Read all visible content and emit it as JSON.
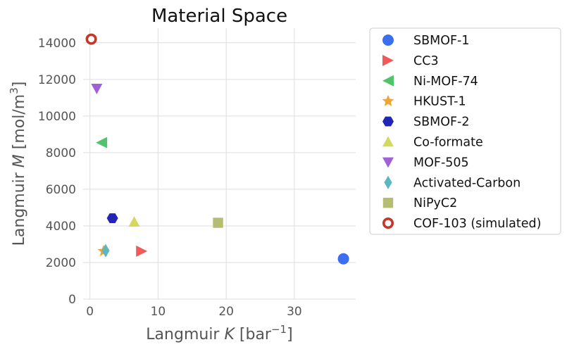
{
  "chart_data": {
    "type": "scatter",
    "title": "Material Space",
    "xlabel": {
      "prefix": "Langmuir ",
      "var": "K",
      "unit_open": " [bar",
      "unit_sup": "−1",
      "unit_close": "]"
    },
    "ylabel": {
      "prefix": "Langmuir ",
      "var": "M",
      "unit_open": " [mol/m",
      "unit_sup": "3",
      "unit_close": "]"
    },
    "xlim": [
      -1,
      39
    ],
    "ylim": [
      0,
      14800
    ],
    "xticks": [
      0,
      10,
      20,
      30
    ],
    "yticks": [
      0,
      2000,
      4000,
      6000,
      8000,
      10000,
      12000,
      14000
    ],
    "grid": true,
    "legend_position": "outside-right",
    "series": [
      {
        "name": "SBMOF-1",
        "marker": "circle",
        "color": "#3d6ef0",
        "x": 37.2,
        "y": 2200
      },
      {
        "name": "CC3",
        "marker": "triangle-right",
        "color": "#f05a5a",
        "x": 7.6,
        "y": 2620
      },
      {
        "name": "Ni-MOF-74",
        "marker": "triangle-left",
        "color": "#50c46a",
        "x": 1.7,
        "y": 8550
      },
      {
        "name": "HKUST-1",
        "marker": "star",
        "color": "#f5a330",
        "x": 2.0,
        "y": 2620
      },
      {
        "name": "SBMOF-2",
        "marker": "hexagon",
        "color": "#2326b5",
        "x": 3.3,
        "y": 4420
      },
      {
        "name": "Co-formate",
        "marker": "triangle-up",
        "color": "#d4d85e",
        "x": 6.5,
        "y": 4220
      },
      {
        "name": "MOF-505",
        "marker": "triangle-down",
        "color": "#a060d8",
        "x": 1.0,
        "y": 11500
      },
      {
        "name": "Activated-Carbon",
        "marker": "diamond",
        "color": "#5cb8c0",
        "x": 2.3,
        "y": 2650
      },
      {
        "name": "NiPyC2",
        "marker": "square",
        "color": "#b5bd72",
        "x": 18.8,
        "y": 4170
      },
      {
        "name": "COF-103 (simulated)",
        "marker": "ring",
        "color": "#c0392b",
        "x": 0.2,
        "y": 14200
      }
    ]
  }
}
